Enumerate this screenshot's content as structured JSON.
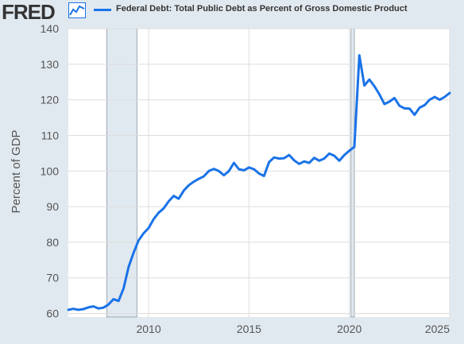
{
  "header": {
    "logo": "FRED",
    "logo_icon": "line-chart-icon",
    "legend_label": "Federal Debt: Total Public Debt as Percent of Gross Domestic Product"
  },
  "colors": {
    "series": "#1a73e8",
    "recession": "#e1e9f0",
    "background": "#e1e9f0",
    "plot_bg": "#ffffff",
    "grid": "#dddddd"
  },
  "chart_data": {
    "type": "line",
    "title": "",
    "xlabel": "",
    "ylabel": "Percent of GDP",
    "xlim": [
      2006.0,
      2025.0
    ],
    "ylim": [
      59,
      140
    ],
    "x_ticks": [
      2010,
      2015,
      2020,
      2025
    ],
    "y_ticks": [
      60,
      70,
      80,
      90,
      100,
      110,
      120,
      130,
      140
    ],
    "grid": true,
    "recessions": [
      [
        2007.92,
        2009.42
      ],
      [
        2020.08,
        2020.25
      ]
    ],
    "series": [
      {
        "name": "Federal Debt: Total Public Debt as Percent of Gross Domestic Product",
        "x": [
          2006.0,
          2006.25,
          2006.5,
          2006.75,
          2007.0,
          2007.25,
          2007.5,
          2007.75,
          2008.0,
          2008.25,
          2008.5,
          2008.75,
          2009.0,
          2009.25,
          2009.5,
          2009.75,
          2010.0,
          2010.25,
          2010.5,
          2010.75,
          2011.0,
          2011.25,
          2011.5,
          2011.75,
          2012.0,
          2012.25,
          2012.5,
          2012.75,
          2013.0,
          2013.25,
          2013.5,
          2013.75,
          2014.0,
          2014.25,
          2014.5,
          2014.75,
          2015.0,
          2015.25,
          2015.5,
          2015.75,
          2016.0,
          2016.25,
          2016.5,
          2016.75,
          2017.0,
          2017.25,
          2017.5,
          2017.75,
          2018.0,
          2018.25,
          2018.5,
          2018.75,
          2019.0,
          2019.25,
          2019.5,
          2019.75,
          2020.0,
          2020.25,
          2020.5,
          2020.75,
          2021.0,
          2021.25,
          2021.5,
          2021.75,
          2022.0,
          2022.25,
          2022.5,
          2022.75,
          2023.0,
          2023.25,
          2023.5,
          2023.75,
          2024.0,
          2024.25,
          2024.5,
          2024.75,
          2025.0
        ],
        "values": [
          61.0,
          61.3,
          61.0,
          61.2,
          61.7,
          62.0,
          61.4,
          61.6,
          62.5,
          64.0,
          63.5,
          67.0,
          73.0,
          77.0,
          80.5,
          82.5,
          84.0,
          86.5,
          88.3,
          89.5,
          91.5,
          93.0,
          92.2,
          94.5,
          96.0,
          97.0,
          97.8,
          98.5,
          100.0,
          100.6,
          100.0,
          98.8,
          100.0,
          102.3,
          100.5,
          100.2,
          101.0,
          100.5,
          99.3,
          98.6,
          102.5,
          103.8,
          103.5,
          103.6,
          104.5,
          103.0,
          102.0,
          102.7,
          102.3,
          103.7,
          102.9,
          103.5,
          104.9,
          104.3,
          102.9,
          104.5,
          105.7,
          106.8,
          132.5,
          124.0,
          125.7,
          123.8,
          121.5,
          118.8,
          119.5,
          120.5,
          118.3,
          117.6,
          117.5,
          115.8,
          117.8,
          118.5,
          120.0,
          120.8,
          120.0,
          120.8,
          121.9
        ]
      }
    ]
  }
}
